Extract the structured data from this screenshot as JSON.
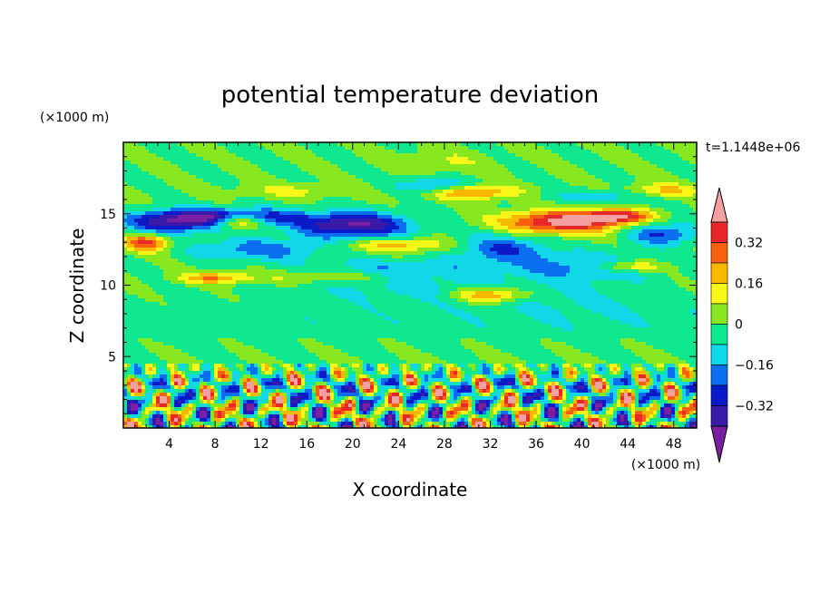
{
  "chart_data": {
    "type": "heatmap",
    "title": "potential temperature deviation",
    "xlabel": "X coordinate",
    "ylabel": "Z coordinate",
    "x_unit": "(×1000 m)",
    "y_unit": "(×1000 m)",
    "time_label": "t=1.1448e+06",
    "xlim": [
      0,
      50
    ],
    "ylim": [
      0,
      20
    ],
    "x_ticks": [
      "4",
      "8",
      "12",
      "16",
      "20",
      "24",
      "28",
      "32",
      "36",
      "40",
      "44",
      "48"
    ],
    "y_ticks": [
      "5",
      "10",
      "15"
    ],
    "colorbar": {
      "tick_labels": [
        "0.32",
        "0.16",
        "0",
        "−0.16",
        "−0.32"
      ],
      "tick_values": [
        0.32,
        0.16,
        0,
        -0.16,
        -0.32
      ],
      "levels": [
        -0.4,
        -0.32,
        -0.24,
        -0.16,
        -0.08,
        0,
        0.08,
        0.16,
        0.24,
        0.32,
        0.4
      ],
      "colors": [
        "#7a1fa2",
        "#3a1aa8",
        "#0a1ac8",
        "#0a6ef0",
        "#10d8e8",
        "#10e890",
        "#88e820",
        "#f8f818",
        "#f8b800",
        "#f86010",
        "#e82828",
        "#f4a0a0"
      ]
    }
  }
}
